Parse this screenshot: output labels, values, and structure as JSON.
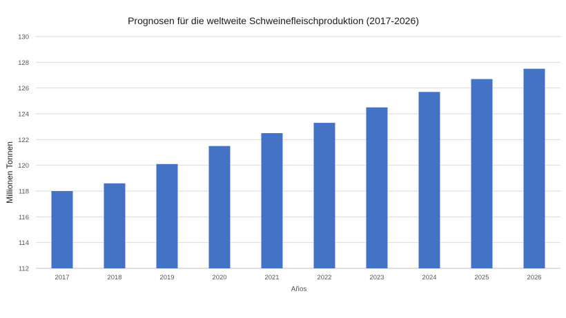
{
  "chart_data": {
    "type": "bar",
    "title": "Prognosen für die weltweite Schweinefleischproduktion (2017-2026)",
    "xlabel": "Años",
    "ylabel": "Millionen Tonnen",
    "categories": [
      "2017",
      "2018",
      "2019",
      "2020",
      "2021",
      "2022",
      "2023",
      "2024",
      "2025",
      "2026"
    ],
    "values": [
      118.0,
      118.6,
      120.1,
      121.5,
      122.5,
      123.3,
      124.5,
      125.7,
      126.7,
      127.5
    ],
    "ylim": [
      112,
      130
    ],
    "yticks": [
      "112",
      "114",
      "116",
      "118",
      "120",
      "122",
      "124",
      "126",
      "128",
      "130"
    ],
    "grid": true,
    "bar_color": "#4472c4"
  }
}
